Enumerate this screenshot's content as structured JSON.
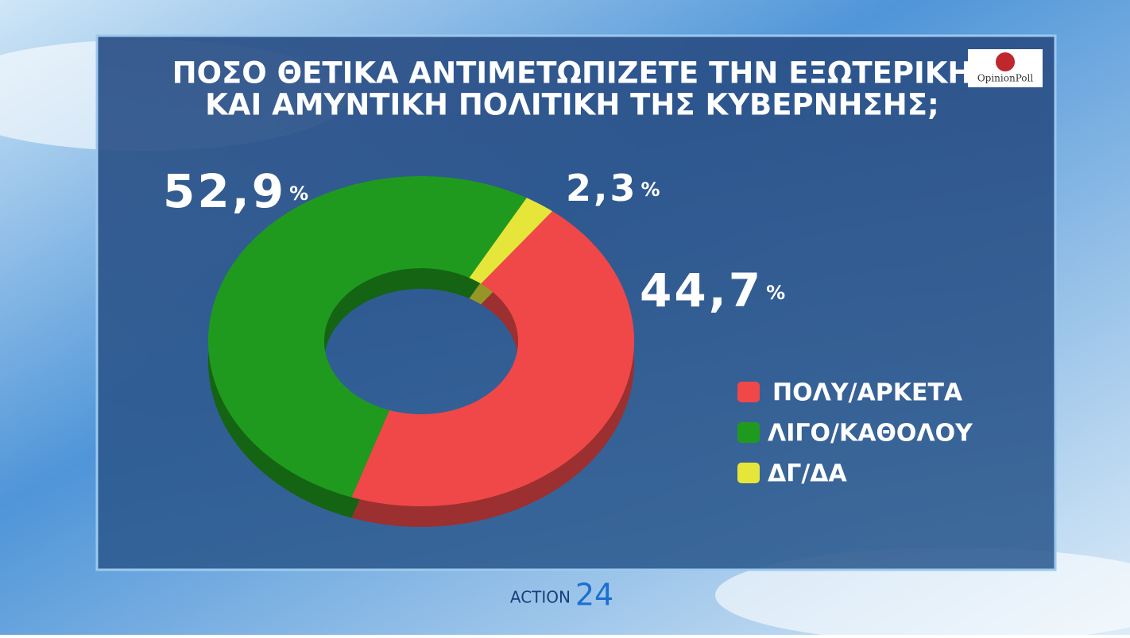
{
  "chart_data": {
    "type": "donut",
    "title": [
      "ΠΟΣΟ ΘΕΤΙΚΑ ΑΝΤΙΜΕΤΩΠΙΖΕΤΕ ΤΗΝ ΕΞΩΤΕΡΙΚΗ",
      "ΚΑΙ ΑΜΥΝΤΙΚΗ ΠΟΛΙΤΙΚΗ ΤΗΣ ΚΥΒΕΡΝΗΣΗΣ;"
    ],
    "categories": [
      "ΠΟΛΥ/ΑΡΚΕΤΑ",
      "ΛΙΓΟ/ΚΑΘΟΛΟΥ",
      "ΔΓ/ΔΑ"
    ],
    "values": [
      44.7,
      52.9,
      2.3
    ],
    "value_labels": [
      "44,7%",
      "52,9%",
      "2,3%"
    ],
    "colors": [
      "#f04848",
      "#1f9a1f",
      "#e6e63a"
    ]
  },
  "brand": {
    "poll": "OpinionPoll",
    "channel": "ACTION",
    "channel_number": "24"
  }
}
